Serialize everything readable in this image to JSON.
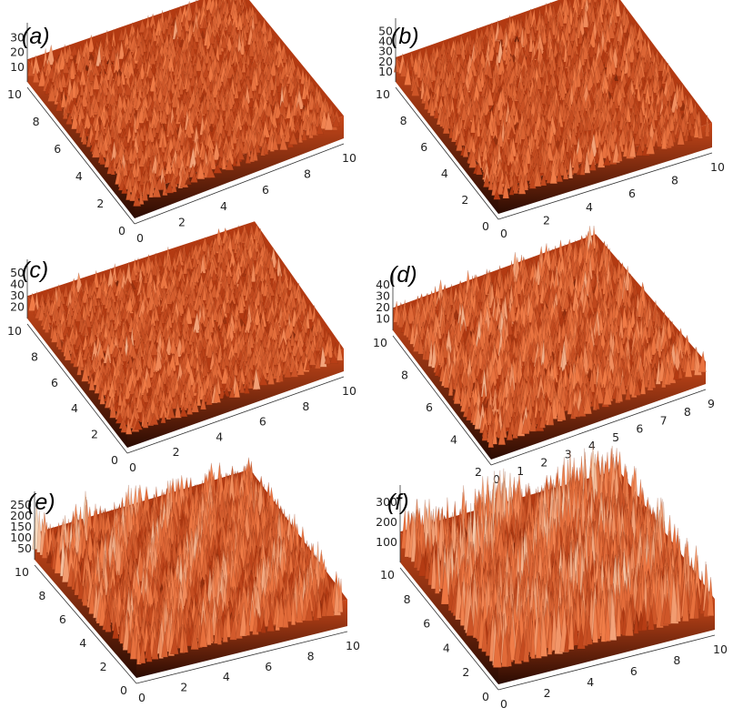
{
  "figure": {
    "description_layout": "2x3 grid of 3D AFM surface topography plots",
    "colors": {
      "dark": "#2a0b02",
      "mid": "#b33a12",
      "bright": "#f07a45",
      "light": "#f6d9be",
      "axis": "#333333"
    }
  },
  "chart_data": [
    {
      "type": "surface",
      "label": "(a)",
      "x_ticks": [
        "0",
        "2",
        "4",
        "6",
        "8",
        "10"
      ],
      "y_ticks": [
        "0",
        "2",
        "4",
        "6",
        "8",
        "10"
      ],
      "z_ticks": [
        "10",
        "20",
        "30"
      ],
      "zlim": [
        0,
        38
      ],
      "roughness": "fine"
    },
    {
      "type": "surface",
      "label": "(b)",
      "x_ticks": [
        "0",
        "2",
        "4",
        "6",
        "8",
        "10"
      ],
      "y_ticks": [
        "0",
        "2",
        "4",
        "6",
        "8",
        "10"
      ],
      "z_ticks": [
        "10",
        "20",
        "30",
        "40",
        "50"
      ],
      "zlim": [
        0,
        58
      ],
      "roughness": "fine"
    },
    {
      "type": "surface",
      "label": "(c)",
      "x_ticks": [
        "0",
        "2",
        "4",
        "6",
        "8",
        "10"
      ],
      "y_ticks": [
        "0",
        "2",
        "4",
        "6",
        "8",
        "10"
      ],
      "z_ticks": [
        "20",
        "30",
        "40",
        "50"
      ],
      "zlim": [
        10,
        58
      ],
      "roughness": "fine"
    },
    {
      "type": "surface",
      "label": "(d)",
      "x_ticks": [
        "0",
        "1",
        "2",
        "3",
        "4",
        "5",
        "6",
        "7",
        "8",
        "9"
      ],
      "y_ticks": [
        "2",
        "4",
        "6",
        "8",
        "10"
      ],
      "z_ticks": [
        "10",
        "20",
        "30",
        "40"
      ],
      "zlim": [
        0,
        48
      ],
      "roughness": "medium"
    },
    {
      "type": "surface",
      "label": "(e)",
      "x_ticks": [
        "0",
        "2",
        "4",
        "6",
        "8",
        "10"
      ],
      "y_ticks": [
        "0",
        "2",
        "4",
        "6",
        "8",
        "10"
      ],
      "z_ticks": [
        "50",
        "100",
        "150",
        "200",
        "250"
      ],
      "zlim": [
        0,
        280
      ],
      "roughness": "coarse"
    },
    {
      "type": "surface",
      "label": "(f)",
      "x_ticks": [
        "0",
        "2",
        "4",
        "6",
        "8",
        "10"
      ],
      "y_ticks": [
        "0",
        "2",
        "4",
        "6",
        "8",
        "10"
      ],
      "z_ticks": [
        "100",
        "200",
        "300"
      ],
      "zlim": [
        0,
        360
      ],
      "roughness": "very-coarse"
    }
  ]
}
